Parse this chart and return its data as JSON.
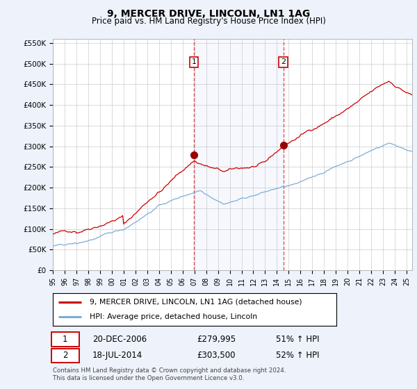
{
  "title": "9, MERCER DRIVE, LINCOLN, LN1 1AG",
  "subtitle": "Price paid vs. HM Land Registry's House Price Index (HPI)",
  "ylabel_ticks": [
    "£0",
    "£50K",
    "£100K",
    "£150K",
    "£200K",
    "£250K",
    "£300K",
    "£350K",
    "£400K",
    "£450K",
    "£500K",
    "£550K"
  ],
  "ytick_vals": [
    0,
    50000,
    100000,
    150000,
    200000,
    250000,
    300000,
    350000,
    400000,
    450000,
    500000,
    550000
  ],
  "ylim": [
    0,
    560000
  ],
  "xlim_start": 1995.0,
  "xlim_end": 2025.5,
  "sale1_x": 2006.97,
  "sale1_y": 279995,
  "sale2_x": 2014.54,
  "sale2_y": 303500,
  "sale1_date": "20-DEC-2006",
  "sale1_price": "£279,995",
  "sale1_hpi": "51% ↑ HPI",
  "sale2_date": "18-JUL-2014",
  "sale2_price": "£303,500",
  "sale2_hpi": "52% ↑ HPI",
  "legend_line1": "9, MERCER DRIVE, LINCOLN, LN1 1AG (detached house)",
  "legend_line2": "HPI: Average price, detached house, Lincoln",
  "footer": "Contains HM Land Registry data © Crown copyright and database right 2024.\nThis data is licensed under the Open Government Licence v3.0.",
  "bg_color": "#eef2fb",
  "plot_bg": "#ffffff",
  "red_line_color": "#cc0000",
  "blue_line_color": "#7eadd4",
  "vline_color": "#dd4444",
  "marker_color": "#990000",
  "xtick_years": [
    1995,
    1996,
    1997,
    1998,
    1999,
    2000,
    2001,
    2002,
    2003,
    2004,
    2005,
    2006,
    2007,
    2008,
    2009,
    2010,
    2011,
    2012,
    2013,
    2014,
    2015,
    2016,
    2017,
    2018,
    2019,
    2020,
    2021,
    2022,
    2023,
    2024,
    2025
  ],
  "xtick_labels": [
    "95",
    "96",
    "97",
    "98",
    "99",
    "00",
    "01",
    "02",
    "03",
    "04",
    "05",
    "06",
    "07",
    "08",
    "09",
    "10",
    "11",
    "12",
    "13",
    "14",
    "15",
    "16",
    "17",
    "18",
    "19",
    "20",
    "21",
    "22",
    "23",
    "24",
    "25"
  ]
}
